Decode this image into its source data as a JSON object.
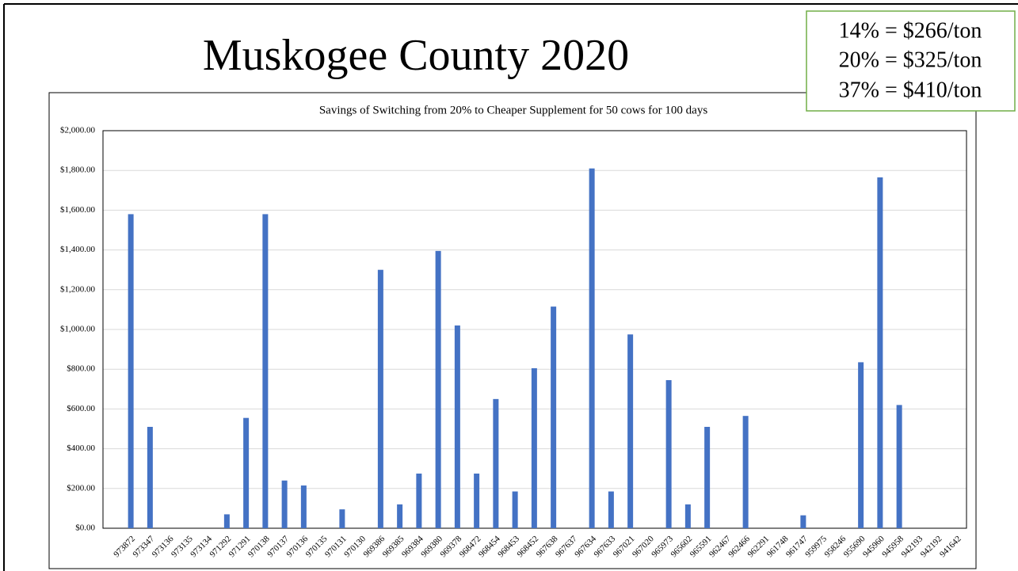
{
  "slide_title": "Muskogee County 2020",
  "annotations": [
    "14% = $266/ton",
    "20% = $325/ton",
    "37% = $410/ton"
  ],
  "chart_data": {
    "type": "bar",
    "title": "Savings of Switching from 20% to Cheaper Supplement for 50 cows for 100 days",
    "categories": [
      "973872",
      "973347",
      "973136",
      "973135",
      "973134",
      "971292",
      "971291",
      "970138",
      "970137",
      "970136",
      "970135",
      "970131",
      "970130",
      "969386",
      "969385",
      "969384",
      "969380",
      "969378",
      "968472",
      "968454",
      "968453",
      "968452",
      "967638",
      "967637",
      "967634",
      "967633",
      "967021",
      "967020",
      "965973",
      "965602",
      "965591",
      "962467",
      "962466",
      "962291",
      "961748",
      "961747",
      "959975",
      "958246",
      "955690",
      "945960",
      "945958",
      "942193",
      "942192",
      "941642"
    ],
    "values": [
      1580,
      510,
      0,
      0,
      0,
      70,
      555,
      1580,
      240,
      215,
      0,
      95,
      0,
      1300,
      120,
      275,
      1395,
      1020,
      275,
      650,
      185,
      805,
      1115,
      0,
      1810,
      185,
      975,
      0,
      745,
      120,
      510,
      0,
      565,
      0,
      0,
      65,
      0,
      0,
      835,
      1765,
      620,
      0,
      0,
      0
    ],
    "color": "#4472c4",
    "ylim": [
      0,
      2000
    ],
    "yticks": [
      {
        "value": 0,
        "label": "$0.00"
      },
      {
        "value": 200,
        "label": "$200.00"
      },
      {
        "value": 400,
        "label": "$400.00"
      },
      {
        "value": 600,
        "label": "$600.00"
      },
      {
        "value": 800,
        "label": "$800.00"
      },
      {
        "value": 1000,
        "label": "$1,000.00"
      },
      {
        "value": 1200,
        "label": "$1,200.00"
      },
      {
        "value": 1400,
        "label": "$1,400.00"
      },
      {
        "value": 1600,
        "label": "$1,600.00"
      },
      {
        "value": 1800,
        "label": "$1,800.00"
      },
      {
        "value": 2000,
        "label": "$2,000.00"
      }
    ],
    "grid": true
  }
}
